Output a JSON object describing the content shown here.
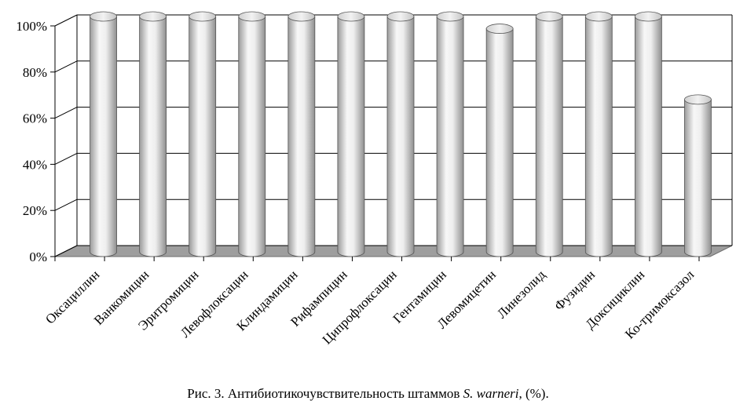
{
  "chart_data": {
    "type": "bar",
    "categories": [
      "Оксациллин",
      "Ванкомицин",
      "Эритромицин",
      "Левофлоксацин",
      "Клиндамицин",
      "Рифампицин",
      "Ципрофлоксацин",
      "Гентамицин",
      "Левомицетин",
      "Линезолид",
      "Фузидин",
      "Доксициклин",
      "Ко-тримоксазол"
    ],
    "values": [
      100,
      100,
      100,
      100,
      100,
      100,
      100,
      100,
      94.7,
      100,
      100,
      100,
      64
    ],
    "ylim": [
      0,
      100
    ],
    "yticks": [
      "0%",
      "20%",
      "40%",
      "60%",
      "80%",
      "100%"
    ],
    "grid": true,
    "style": "3d-cylinder",
    "colors": {
      "bar_light": "#f7f7f7",
      "bar_dark": "#9a9a9a",
      "floor": "#9e9e9e",
      "grid": "#000000"
    }
  },
  "caption": {
    "prefix": "Рис. 3. Антибиотикочувствительность штаммов ",
    "species": "S. warneri",
    "suffix": ", (%)."
  }
}
